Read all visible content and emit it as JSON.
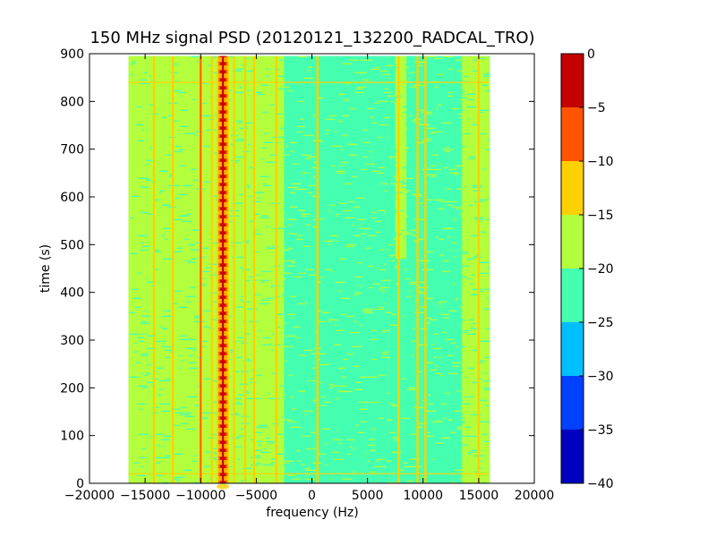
{
  "chart_data": {
    "type": "heatmap",
    "title": "150 MHz signal PSD (20120121_132200_RADCAL_TRO)",
    "xlabel": "frequency (Hz)",
    "ylabel": "time (s)",
    "xlim": [
      -20000,
      20000
    ],
    "ylim": [
      0,
      900
    ],
    "x_ticks": [
      "−20000",
      "−15000",
      "−10000",
      "−5000",
      "0",
      "5000",
      "10000",
      "15000",
      "20000"
    ],
    "x_tick_values": [
      -20000,
      -15000,
      -10000,
      -5000,
      0,
      5000,
      10000,
      15000,
      20000
    ],
    "y_ticks": [
      "0",
      "100",
      "200",
      "300",
      "400",
      "500",
      "600",
      "700",
      "800",
      "900"
    ],
    "y_tick_values": [
      0,
      100,
      200,
      300,
      400,
      500,
      600,
      700,
      800,
      900
    ],
    "data_extent": {
      "x": [
        -16500,
        16000
      ],
      "y": [
        0,
        895
      ]
    },
    "background_level": -25,
    "colorbar": {
      "levels": [
        -40,
        -35,
        -30,
        -25,
        -20,
        -15,
        -10,
        -5,
        0
      ],
      "tick_labels": [
        "−40",
        "−35",
        "−30",
        "−25",
        "−20",
        "−15",
        "−10",
        "−5",
        "0"
      ],
      "colors": [
        "#0000c0",
        "#0040ff",
        "#00bfff",
        "#45ffb0",
        "#b3ff3d",
        "#ffd000",
        "#ff5500",
        "#c50000"
      ]
    },
    "regions": [
      {
        "x": [
          -16500,
          -2500
        ],
        "y": [
          0,
          895
        ],
        "level": -20
      },
      {
        "x": [
          -2500,
          7500
        ],
        "y": [
          0,
          895
        ],
        "level": -25
      },
      {
        "x": [
          7500,
          8500
        ],
        "y": [
          470,
          895
        ],
        "level": -20
      },
      {
        "x": [
          8500,
          13500
        ],
        "y": [
          0,
          895
        ],
        "level": -25
      },
      {
        "x": [
          13500,
          16000
        ],
        "y": [
          0,
          895
        ],
        "level": -20
      }
    ],
    "peaks": [
      {
        "x": -8000,
        "level": 0
      },
      {
        "x": -10000,
        "level": -10
      },
      {
        "x": -9000,
        "level": -15
      },
      {
        "x": -7000,
        "level": -15
      },
      {
        "x": -14200,
        "level": -15
      },
      {
        "x": -12500,
        "level": -15
      },
      {
        "x": -6000,
        "level": -15
      },
      {
        "x": -5200,
        "level": -15
      },
      {
        "x": -3200,
        "level": -15
      },
      {
        "x": 500,
        "level": -15
      },
      {
        "x": 7800,
        "level": -15
      },
      {
        "x": 9500,
        "level": -15
      },
      {
        "x": 10200,
        "level": -15
      },
      {
        "x": 15000,
        "level": -15
      }
    ]
  }
}
